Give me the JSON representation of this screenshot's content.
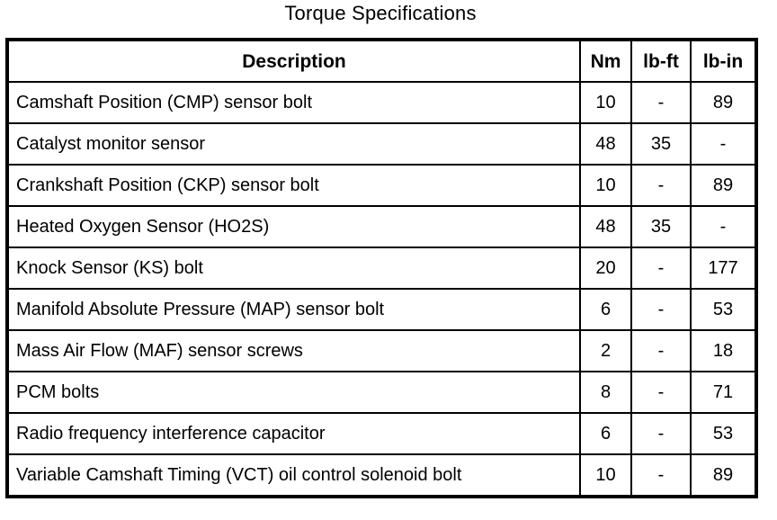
{
  "title": "Torque Specifications",
  "colors": {
    "border": "#000000",
    "background": "#ffffff",
    "text": "#000000"
  },
  "table": {
    "headers": [
      "Description",
      "Nm",
      "lb-ft",
      "lb-in"
    ],
    "rows": [
      {
        "description": "Camshaft Position (CMP) sensor bolt",
        "nm": "10",
        "lb_ft": "-",
        "lb_in": "89"
      },
      {
        "description": "Catalyst monitor sensor",
        "nm": "48",
        "lb_ft": "35",
        "lb_in": "-"
      },
      {
        "description": "Crankshaft Position (CKP) sensor bolt",
        "nm": "10",
        "lb_ft": "-",
        "lb_in": "89"
      },
      {
        "description": "Heated Oxygen Sensor (HO2S)",
        "nm": "48",
        "lb_ft": "35",
        "lb_in": "-"
      },
      {
        "description": "Knock Sensor (KS) bolt",
        "nm": "20",
        "lb_ft": "-",
        "lb_in": "177"
      },
      {
        "description": "Manifold Absolute Pressure (MAP) sensor bolt",
        "nm": "6",
        "lb_ft": "-",
        "lb_in": "53"
      },
      {
        "description": "Mass Air Flow (MAF) sensor screws",
        "nm": "2",
        "lb_ft": "-",
        "lb_in": "18"
      },
      {
        "description": "PCM bolts",
        "nm": "8",
        "lb_ft": "-",
        "lb_in": "71"
      },
      {
        "description": "Radio frequency interference capacitor",
        "nm": "6",
        "lb_ft": "-",
        "lb_in": "53"
      },
      {
        "description": "Variable Camshaft Timing (VCT) oil control solenoid bolt",
        "nm": "10",
        "lb_ft": "-",
        "lb_in": "89"
      }
    ]
  }
}
